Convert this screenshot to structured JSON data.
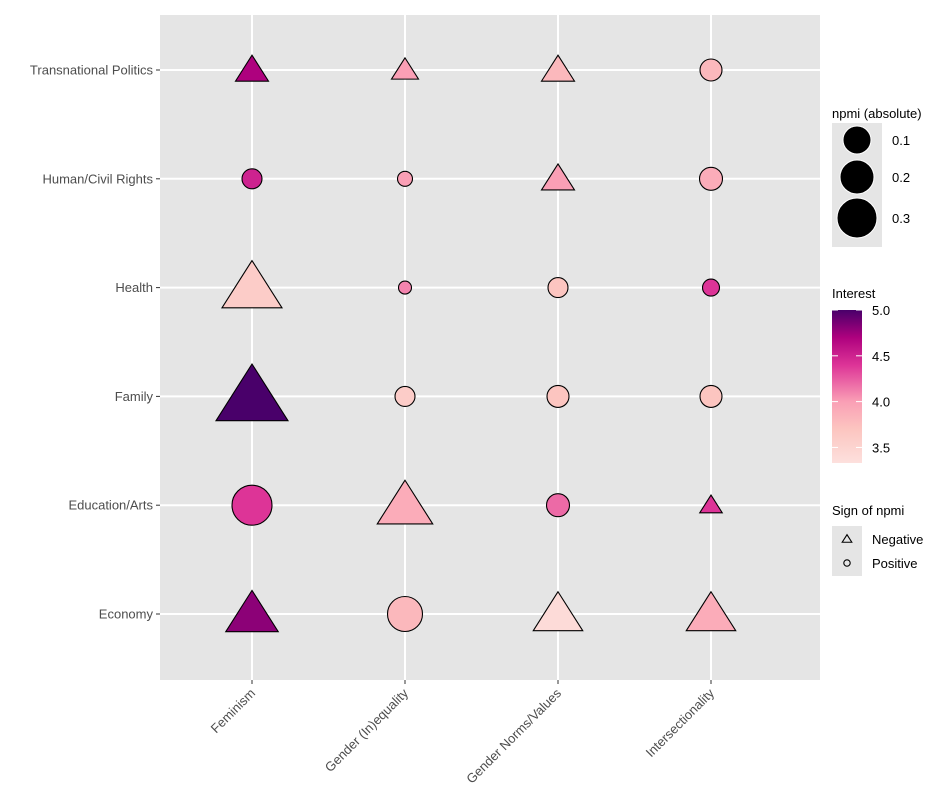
{
  "chart_data": {
    "type": "scatter",
    "title": "",
    "xlabel": "",
    "ylabel": "",
    "x_categories": [
      "Feminism",
      "Gender (In)equality",
      "Gender Norms/Values",
      "Intersectionality"
    ],
    "y_categories": [
      "Economy",
      "Education/Arts",
      "Family",
      "Health",
      "Human/Civil Rights",
      "Transnational Politics"
    ],
    "points": [
      {
        "x": "Feminism",
        "y": "Transnational Politics",
        "interest": 4.7,
        "npmi_abs": 0.12,
        "sign": "Negative"
      },
      {
        "x": "Gender (In)equality",
        "y": "Transnational Politics",
        "interest": 4.0,
        "npmi_abs": 0.08,
        "sign": "Negative"
      },
      {
        "x": "Gender Norms/Values",
        "y": "Transnational Politics",
        "interest": 3.8,
        "npmi_abs": 0.12,
        "sign": "Negative"
      },
      {
        "x": "Intersectionality",
        "y": "Transnational Politics",
        "interest": 3.8,
        "npmi_abs": 0.12,
        "sign": "Positive"
      },
      {
        "x": "Feminism",
        "y": "Human/Civil Rights",
        "interest": 4.5,
        "npmi_abs": 0.1,
        "sign": "Positive"
      },
      {
        "x": "Gender (In)equality",
        "y": "Human/Civil Rights",
        "interest": 4.0,
        "npmi_abs": 0.05,
        "sign": "Positive"
      },
      {
        "x": "Gender Norms/Values",
        "y": "Human/Civil Rights",
        "interest": 4.0,
        "npmi_abs": 0.12,
        "sign": "Negative"
      },
      {
        "x": "Intersectionality",
        "y": "Human/Civil Rights",
        "interest": 3.9,
        "npmi_abs": 0.13,
        "sign": "Positive"
      },
      {
        "x": "Feminism",
        "y": "Health",
        "interest": 3.6,
        "npmi_abs": 0.3,
        "sign": "Negative"
      },
      {
        "x": "Gender (In)equality",
        "y": "Health",
        "interest": 4.1,
        "npmi_abs": 0.03,
        "sign": "Positive"
      },
      {
        "x": "Gender Norms/Values",
        "y": "Health",
        "interest": 3.7,
        "npmi_abs": 0.1,
        "sign": "Positive"
      },
      {
        "x": "Intersectionality",
        "y": "Health",
        "interest": 4.4,
        "npmi_abs": 0.07,
        "sign": "Positive"
      },
      {
        "x": "Feminism",
        "y": "Family",
        "interest": 5.0,
        "npmi_abs": 0.38,
        "sign": "Negative"
      },
      {
        "x": "Gender (In)equality",
        "y": "Family",
        "interest": 3.6,
        "npmi_abs": 0.1,
        "sign": "Positive"
      },
      {
        "x": "Gender Norms/Values",
        "y": "Family",
        "interest": 3.7,
        "npmi_abs": 0.12,
        "sign": "Positive"
      },
      {
        "x": "Intersectionality",
        "y": "Family",
        "interest": 3.7,
        "npmi_abs": 0.12,
        "sign": "Positive"
      },
      {
        "x": "Feminism",
        "y": "Education/Arts",
        "interest": 4.4,
        "npmi_abs": 0.3,
        "sign": "Positive"
      },
      {
        "x": "Gender (In)equality",
        "y": "Education/Arts",
        "interest": 3.9,
        "npmi_abs": 0.27,
        "sign": "Negative"
      },
      {
        "x": "Gender Norms/Values",
        "y": "Education/Arts",
        "interest": 4.2,
        "npmi_abs": 0.13,
        "sign": "Positive"
      },
      {
        "x": "Intersectionality",
        "y": "Education/Arts",
        "interest": 4.4,
        "npmi_abs": 0.05,
        "sign": "Negative"
      },
      {
        "x": "Feminism",
        "y": "Economy",
        "interest": 4.8,
        "npmi_abs": 0.25,
        "sign": "Negative"
      },
      {
        "x": "Gender (In)equality",
        "y": "Economy",
        "interest": 3.8,
        "npmi_abs": 0.25,
        "sign": "Positive"
      },
      {
        "x": "Gender Norms/Values",
        "y": "Economy",
        "interest": 3.4,
        "npmi_abs": 0.23,
        "sign": "Negative"
      },
      {
        "x": "Intersectionality",
        "y": "Economy",
        "interest": 3.9,
        "npmi_abs": 0.23,
        "sign": "Negative"
      }
    ],
    "legends": {
      "size": {
        "title": "npmi (absolute)",
        "values": [
          0.1,
          0.2,
          0.3
        ],
        "labels": [
          "0.1",
          "0.2",
          "0.3"
        ]
      },
      "color": {
        "title": "Interest",
        "range": [
          3.33,
          5.0
        ],
        "ticks": [
          3.5,
          4.0,
          4.5,
          5.0
        ],
        "tick_labels": [
          "3.5",
          "4.0",
          "4.5",
          "5.0"
        ]
      },
      "shape": {
        "title": "Sign of npmi",
        "items": [
          "Negative",
          "Positive"
        ]
      }
    },
    "legend_position": "right",
    "grid": true
  }
}
